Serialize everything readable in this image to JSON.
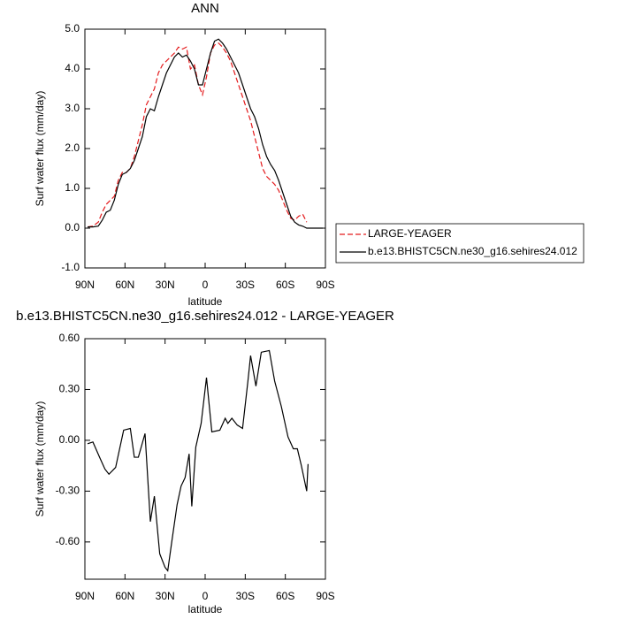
{
  "chart_data": [
    {
      "type": "line",
      "title": "ANN",
      "x_label": "latitude",
      "y_label": "Surf water flux (mm/day)",
      "x": [
        88,
        84,
        80,
        77,
        74,
        71,
        68,
        65,
        62,
        59,
        56,
        53,
        50,
        47,
        44,
        41,
        38,
        35,
        32,
        29,
        26,
        23,
        20,
        17,
        14,
        11,
        8,
        5,
        2,
        -1,
        -4,
        -7,
        -10,
        -13,
        -16,
        -19,
        -22,
        -25,
        -28,
        -31,
        -34,
        -37,
        -40,
        -43,
        -46,
        -49,
        -52,
        -55,
        -58,
        -61,
        -64,
        -67,
        -70,
        -73,
        -76,
        -80,
        -84,
        -88
      ],
      "series": [
        {
          "name": "LARGE-YEAGER",
          "color": "#e41a1c",
          "line_style": "dashed",
          "values": [
            0.03,
            0.05,
            0.15,
            0.4,
            0.6,
            0.7,
            0.8,
            1.2,
            1.4,
            1.4,
            1.5,
            1.8,
            2.2,
            2.6,
            3.1,
            3.3,
            3.5,
            3.9,
            4.1,
            4.2,
            4.3,
            4.4,
            4.55,
            4.5,
            4.55,
            4.0,
            4.1,
            3.6,
            3.35,
            3.8,
            4.4,
            4.6,
            4.65,
            4.55,
            4.4,
            4.2,
            3.9,
            3.6,
            3.3,
            3.0,
            2.7,
            2.3,
            1.9,
            1.5,
            1.3,
            1.2,
            1.1,
            0.95,
            0.7,
            0.45,
            0.25,
            0.2,
            0.3,
            0.35,
            0.15,
            null,
            null,
            null
          ]
        },
        {
          "name": "b.e13.BHISTC5CN.ne30_g16.sehires24.012",
          "color": "#000000",
          "line_style": "solid",
          "values": [
            0.03,
            0.03,
            0.05,
            0.2,
            0.4,
            0.45,
            0.7,
            1.1,
            1.35,
            1.4,
            1.5,
            1.7,
            2.0,
            2.3,
            2.8,
            3.0,
            2.95,
            3.3,
            3.6,
            3.9,
            4.1,
            4.3,
            4.4,
            4.3,
            4.35,
            4.2,
            4.0,
            3.6,
            3.6,
            4.0,
            4.4,
            4.7,
            4.75,
            4.65,
            4.5,
            4.3,
            4.1,
            3.9,
            3.6,
            3.3,
            3.0,
            2.8,
            2.5,
            2.1,
            1.8,
            1.6,
            1.45,
            1.2,
            0.9,
            0.6,
            0.3,
            0.15,
            0.08,
            0.05,
            0.0,
            0.0,
            0.0,
            0.0
          ]
        }
      ],
      "xlim": [
        90,
        -90
      ],
      "xticks": [
        {
          "value": 90,
          "label": "90N"
        },
        {
          "value": 60,
          "label": "60N"
        },
        {
          "value": 30,
          "label": "30N"
        },
        0,
        {
          "value": -30,
          "label": "30S"
        },
        {
          "value": -60,
          "label": "60S"
        },
        {
          "value": -90,
          "label": "90S"
        }
      ],
      "ylim": [
        -1,
        5
      ],
      "yticks": [
        {
          "value": -1,
          "label": "-1.0"
        },
        {
          "value": 0,
          "label": "0.0"
        },
        {
          "value": 1,
          "label": "1.0"
        },
        {
          "value": 2,
          "label": "2.0"
        },
        {
          "value": 3,
          "label": "3.0"
        },
        {
          "value": 4,
          "label": "4.0"
        },
        {
          "value": 5,
          "label": "5.0"
        }
      ],
      "legend": "right"
    },
    {
      "type": "line",
      "title": "b.e13.BHISTC5CN.ne30_g16.sehires24.012 - LARGE-YEAGER",
      "x_label": "latitude",
      "y_label": "Surf water flux (mm/day)",
      "x": [
        88,
        84,
        79,
        75,
        72,
        67,
        61,
        56,
        53,
        50,
        45,
        41,
        38,
        34,
        30,
        28,
        25,
        21,
        18,
        15,
        12,
        10,
        7,
        3,
        -1,
        -5,
        -11,
        -15,
        -17,
        -20,
        -24,
        -28,
        -32,
        -34,
        -38,
        -42,
        -48,
        -52,
        -57,
        -62,
        -66,
        -69,
        -72,
        -76,
        -77
      ],
      "series": [
        {
          "color": "#000000",
          "line_style": "solid",
          "values": [
            -0.02,
            -0.01,
            -0.1,
            -0.17,
            -0.2,
            -0.16,
            0.06,
            0.07,
            -0.1,
            -0.1,
            0.04,
            -0.48,
            -0.33,
            -0.67,
            -0.75,
            -0.77,
            -0.6,
            -0.38,
            -0.27,
            -0.22,
            -0.08,
            -0.39,
            -0.04,
            0.1,
            0.37,
            0.05,
            0.06,
            0.13,
            0.1,
            0.13,
            0.09,
            0.07,
            0.35,
            0.5,
            0.32,
            0.52,
            0.53,
            0.35,
            0.2,
            0.02,
            -0.05,
            -0.05,
            -0.15,
            -0.3,
            -0.14
          ]
        }
      ],
      "xlim": [
        90,
        -90
      ],
      "xticks": [
        {
          "value": 90,
          "label": "90N"
        },
        {
          "value": 60,
          "label": "60N"
        },
        {
          "value": 30,
          "label": "30N"
        },
        0,
        {
          "value": -30,
          "label": "30S"
        },
        {
          "value": -60,
          "label": "60S"
        },
        {
          "value": -90,
          "label": "90S"
        }
      ],
      "ylim": [
        -0.82,
        0.6
      ],
      "yticks": [
        {
          "value": -0.6,
          "label": "-0.60"
        },
        {
          "value": -0.3,
          "label": "-0.30"
        },
        {
          "value": 0,
          "label": "0.00"
        },
        {
          "value": 0.3,
          "label": "0.30"
        },
        {
          "value": 0.6,
          "label": "0.60"
        }
      ]
    }
  ]
}
